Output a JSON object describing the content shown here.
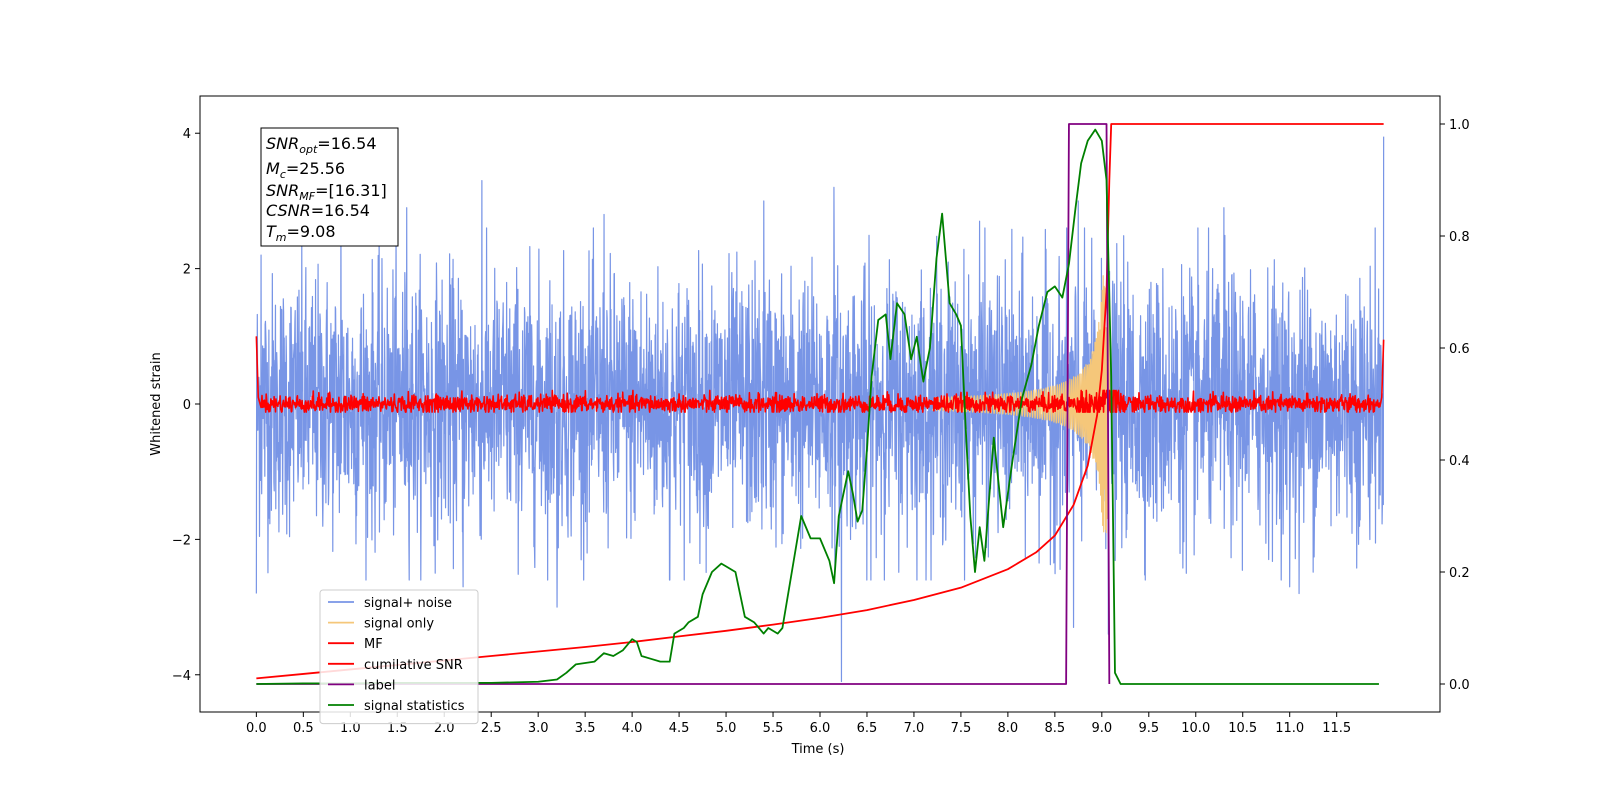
{
  "chart_data": {
    "type": "line",
    "xlabel": "Time (s)",
    "ylabel": "Whitened strain",
    "xlim": [
      -0.6,
      12.6
    ],
    "ylim": [
      -4.55,
      4.55
    ],
    "y2lim": [
      -0.05,
      1.05
    ],
    "x_ticks": [
      "0.0",
      "0.5",
      "1.0",
      "1.5",
      "2.0",
      "2.5",
      "3.0",
      "3.5",
      "4.0",
      "4.5",
      "5.0",
      "5.5",
      "6.0",
      "6.5",
      "7.0",
      "7.5",
      "8.0",
      "8.5",
      "9.0",
      "9.5",
      "10.0",
      "10.5",
      "11.0",
      "11.5"
    ],
    "y_ticks": [
      "4",
      "2",
      "0",
      "−2",
      "−4"
    ],
    "y2_ticks": [
      "1.0",
      "0.8",
      "0.6",
      "0.4",
      "0.2",
      "0.0"
    ],
    "annotation": {
      "snr_opt": {
        "base": "SNR",
        "sub": "opt",
        "value": "=16.54"
      },
      "mc": {
        "base": "M",
        "sub": "c",
        "value": "=25.56"
      },
      "snr_mf": {
        "base": "SNR",
        "sub": "MF",
        "value": "=[16.31]"
      },
      "csnr": {
        "base": "CSNR",
        "value": "=16.54"
      },
      "tm": {
        "base": "T",
        "sub": "m",
        "value": "=9.08"
      }
    },
    "series": [
      {
        "name": "signal+ noise",
        "color": "#7895e6",
        "axis": "left",
        "kind": "noise",
        "x_range": [
          0.0,
          12.0
        ],
        "spread": 0.95,
        "spikes": [
          [
            0.0,
            -2.8
          ],
          [
            0.05,
            2.2
          ],
          [
            0.9,
            2.9
          ],
          [
            1.6,
            2.9
          ],
          [
            2.4,
            3.3
          ],
          [
            2.2,
            -2.7
          ],
          [
            3.2,
            -3.0
          ],
          [
            3.7,
            2.8
          ],
          [
            4.4,
            -2.6
          ],
          [
            5.4,
            3.0
          ],
          [
            6.23,
            -4.1
          ],
          [
            6.15,
            3.2
          ],
          [
            6.5,
            -2.6
          ],
          [
            7.7,
            2.7
          ],
          [
            8.7,
            -3.3
          ],
          [
            8.75,
            3.0
          ],
          [
            9.07,
            -3.4
          ],
          [
            9.9,
            -2.5
          ],
          [
            10.3,
            2.9
          ],
          [
            11.0,
            -2.7
          ],
          [
            11.1,
            -2.8
          ],
          [
            12.0,
            3.95
          ]
        ]
      },
      {
        "name": "signal only",
        "color": "#f5c77a",
        "axis": "left",
        "kind": "chirp",
        "t_merge": 9.08
      },
      {
        "name": "MF",
        "color": "#ff0000",
        "axis": "left",
        "kind": "mf",
        "points": [
          [
            0.0,
            1.0
          ],
          [
            0.02,
            0.1
          ],
          [
            0.05,
            -0.05
          ]
        ],
        "end_points": [
          [
            11.98,
            0.1
          ],
          [
            12.0,
            0.95
          ]
        ],
        "spread": 0.07
      },
      {
        "name": "cumilative SNR",
        "color": "#ff0000",
        "axis": "right",
        "points": [
          [
            0.0,
            0.01
          ],
          [
            0.5,
            0.018
          ],
          [
            1.0,
            0.026
          ],
          [
            1.5,
            0.034
          ],
          [
            2.0,
            0.042
          ],
          [
            2.5,
            0.05
          ],
          [
            3.0,
            0.058
          ],
          [
            3.5,
            0.066
          ],
          [
            4.0,
            0.075
          ],
          [
            4.5,
            0.085
          ],
          [
            5.0,
            0.095
          ],
          [
            5.5,
            0.106
          ],
          [
            6.0,
            0.118
          ],
          [
            6.5,
            0.132
          ],
          [
            7.0,
            0.15
          ],
          [
            7.5,
            0.172
          ],
          [
            8.0,
            0.205
          ],
          [
            8.3,
            0.235
          ],
          [
            8.5,
            0.265
          ],
          [
            8.7,
            0.32
          ],
          [
            8.85,
            0.39
          ],
          [
            8.95,
            0.48
          ],
          [
            9.0,
            0.56
          ],
          [
            9.05,
            0.7
          ],
          [
            9.08,
            0.9
          ],
          [
            9.1,
            1.0
          ],
          [
            12.0,
            1.0
          ]
        ]
      },
      {
        "name": "label",
        "color": "#800080",
        "axis": "right",
        "points": [
          [
            0.0,
            0.0
          ],
          [
            8.62,
            0.0
          ],
          [
            8.65,
            1.0
          ],
          [
            9.05,
            1.0
          ],
          [
            9.08,
            0.0
          ]
        ]
      },
      {
        "name": "signal statistics",
        "color": "#008000",
        "axis": "right",
        "points": [
          [
            0.0,
            0.0
          ],
          [
            0.5,
            0.001
          ],
          [
            1.0,
            0.001
          ],
          [
            1.5,
            0.002
          ],
          [
            2.0,
            0.002
          ],
          [
            2.5,
            0.002
          ],
          [
            3.0,
            0.004
          ],
          [
            3.2,
            0.008
          ],
          [
            3.3,
            0.02
          ],
          [
            3.4,
            0.035
          ],
          [
            3.6,
            0.04
          ],
          [
            3.7,
            0.055
          ],
          [
            3.8,
            0.05
          ],
          [
            3.9,
            0.06
          ],
          [
            4.0,
            0.08
          ],
          [
            4.05,
            0.075
          ],
          [
            4.1,
            0.05
          ],
          [
            4.2,
            0.045
          ],
          [
            4.3,
            0.04
          ],
          [
            4.4,
            0.04
          ],
          [
            4.45,
            0.09
          ],
          [
            4.55,
            0.1
          ],
          [
            4.6,
            0.11
          ],
          [
            4.7,
            0.12
          ],
          [
            4.75,
            0.16
          ],
          [
            4.85,
            0.2
          ],
          [
            4.95,
            0.215
          ],
          [
            5.0,
            0.21
          ],
          [
            5.1,
            0.2
          ],
          [
            5.2,
            0.12
          ],
          [
            5.3,
            0.11
          ],
          [
            5.4,
            0.09
          ],
          [
            5.45,
            0.1
          ],
          [
            5.55,
            0.09
          ],
          [
            5.6,
            0.1
          ],
          [
            5.7,
            0.2
          ],
          [
            5.8,
            0.3
          ],
          [
            5.9,
            0.26
          ],
          [
            6.0,
            0.26
          ],
          [
            6.1,
            0.22
          ],
          [
            6.15,
            0.18
          ],
          [
            6.2,
            0.3
          ],
          [
            6.3,
            0.38
          ],
          [
            6.35,
            0.34
          ],
          [
            6.4,
            0.29
          ],
          [
            6.45,
            0.31
          ],
          [
            6.5,
            0.42
          ],
          [
            6.55,
            0.55
          ],
          [
            6.62,
            0.65
          ],
          [
            6.7,
            0.66
          ],
          [
            6.75,
            0.58
          ],
          [
            6.82,
            0.68
          ],
          [
            6.9,
            0.66
          ],
          [
            6.97,
            0.58
          ],
          [
            7.03,
            0.62
          ],
          [
            7.1,
            0.54
          ],
          [
            7.17,
            0.6
          ],
          [
            7.24,
            0.76
          ],
          [
            7.3,
            0.84
          ],
          [
            7.38,
            0.68
          ],
          [
            7.45,
            0.66
          ],
          [
            7.5,
            0.64
          ],
          [
            7.55,
            0.46
          ],
          [
            7.6,
            0.3
          ],
          [
            7.65,
            0.2
          ],
          [
            7.7,
            0.28
          ],
          [
            7.75,
            0.22
          ],
          [
            7.85,
            0.44
          ],
          [
            7.95,
            0.28
          ],
          [
            8.05,
            0.4
          ],
          [
            8.15,
            0.51
          ],
          [
            8.25,
            0.57
          ],
          [
            8.33,
            0.64
          ],
          [
            8.42,
            0.7
          ],
          [
            8.5,
            0.71
          ],
          [
            8.58,
            0.69
          ],
          [
            8.65,
            0.75
          ],
          [
            8.72,
            0.85
          ],
          [
            8.78,
            0.93
          ],
          [
            8.85,
            0.97
          ],
          [
            8.93,
            0.99
          ],
          [
            9.0,
            0.97
          ],
          [
            9.05,
            0.9
          ],
          [
            9.1,
            0.55
          ],
          [
            9.14,
            0.02
          ],
          [
            9.2,
            0.0
          ],
          [
            10.0,
            0.0
          ],
          [
            11.0,
            0.0
          ],
          [
            11.95,
            0.0
          ]
        ]
      }
    ],
    "legend": {
      "placement": "lower-left",
      "entries": [
        "signal+ noise",
        "signal only",
        "MF",
        "cumilative SNR",
        "label",
        "signal statistics"
      ],
      "colors": [
        "#7895e6",
        "#f5c77a",
        "#ff0000",
        "#ff0000",
        "#800080",
        "#008000"
      ]
    }
  }
}
